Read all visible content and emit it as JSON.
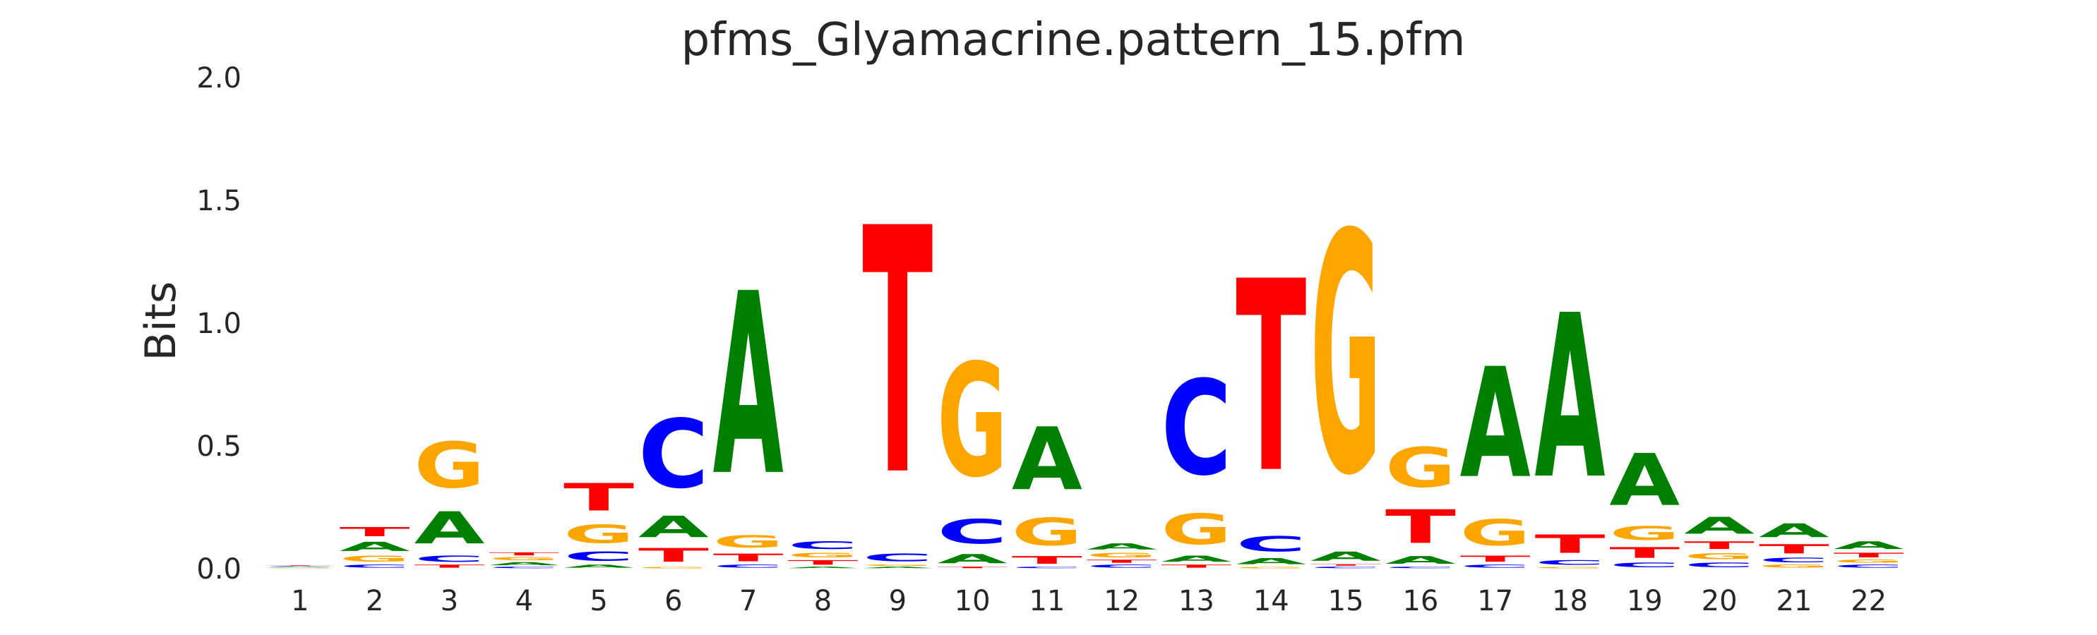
{
  "chart_data": {
    "type": "sequence-logo",
    "title": "pfms_Glyamacrine.pattern_15.pfm",
    "xlabel": "",
    "ylabel": "Bits",
    "ylim": [
      0,
      2.0
    ],
    "yticks": [
      "0.0",
      "0.5",
      "1.0",
      "1.5",
      "2.0"
    ],
    "grid": false,
    "colors": {
      "A": "#008000",
      "C": "#0000ff",
      "G": "#ffa500",
      "T": "#ff0000"
    },
    "positions": [
      {
        "pos": "1",
        "letters": [
          [
            "G",
            0.004
          ],
          [
            "A",
            0.004
          ],
          [
            "C",
            0.003
          ],
          [
            "T",
            0.003
          ]
        ]
      },
      {
        "pos": "2",
        "letters": [
          [
            "C",
            0.02
          ],
          [
            "G",
            0.04
          ],
          [
            "A",
            0.06
          ],
          [
            "T",
            0.06
          ]
        ]
      },
      {
        "pos": "3",
        "letters": [
          [
            "T",
            0.02
          ],
          [
            "C",
            0.04
          ],
          [
            "A",
            0.21
          ],
          [
            "G",
            0.3
          ]
        ]
      },
      {
        "pos": "4",
        "letters": [
          [
            "C",
            0.01
          ],
          [
            "A",
            0.02
          ],
          [
            "G",
            0.02
          ],
          [
            "T",
            0.02
          ]
        ]
      },
      {
        "pos": "5",
        "letters": [
          [
            "A",
            0.02
          ],
          [
            "C",
            0.06
          ],
          [
            "G",
            0.12
          ],
          [
            "T",
            0.18
          ]
        ]
      },
      {
        "pos": "6",
        "letters": [
          [
            "G",
            0.01
          ],
          [
            "T",
            0.09
          ],
          [
            "A",
            0.14
          ],
          [
            "C",
            0.45
          ]
        ]
      },
      {
        "pos": "7",
        "letters": [
          [
            "C",
            0.02
          ],
          [
            "T",
            0.05
          ],
          [
            "G",
            0.08
          ],
          [
            "A",
            1.19
          ]
        ]
      },
      {
        "pos": "8",
        "letters": [
          [
            "A",
            0.01
          ],
          [
            "T",
            0.03
          ],
          [
            "G",
            0.03
          ],
          [
            "C",
            0.05
          ]
        ]
      },
      {
        "pos": "9",
        "letters": [
          [
            "A",
            0.01
          ],
          [
            "G",
            0.01
          ],
          [
            "C",
            0.05
          ],
          [
            "T",
            1.61
          ]
        ]
      },
      {
        "pos": "10",
        "letters": [
          [
            "T",
            0.01
          ],
          [
            "A",
            0.06
          ],
          [
            "C",
            0.16
          ],
          [
            "G",
            0.74
          ]
        ]
      },
      {
        "pos": "11",
        "letters": [
          [
            "C",
            0.01
          ],
          [
            "T",
            0.05
          ],
          [
            "G",
            0.18
          ],
          [
            "A",
            0.41
          ]
        ]
      },
      {
        "pos": "12",
        "letters": [
          [
            "C",
            0.02
          ],
          [
            "T",
            0.02
          ],
          [
            "G",
            0.03
          ],
          [
            "A",
            0.04
          ]
        ]
      },
      {
        "pos": "13",
        "letters": [
          [
            "T",
            0.02
          ],
          [
            "A",
            0.04
          ],
          [
            "G",
            0.2
          ],
          [
            "C",
            0.62
          ]
        ]
      },
      {
        "pos": "14",
        "letters": [
          [
            "G",
            0.01
          ],
          [
            "A",
            0.04
          ],
          [
            "C",
            0.1
          ],
          [
            "T",
            1.25
          ]
        ]
      },
      {
        "pos": "15",
        "letters": [
          [
            "C",
            0.01
          ],
          [
            "T",
            0.01
          ],
          [
            "A",
            0.06
          ],
          [
            "G",
            1.57
          ]
        ]
      },
      {
        "pos": "16",
        "letters": [
          [
            "C",
            0.01
          ],
          [
            "A",
            0.05
          ],
          [
            "T",
            0.22
          ],
          [
            "G",
            0.26
          ]
        ]
      },
      {
        "pos": "17",
        "letters": [
          [
            "C",
            0.02
          ],
          [
            "T",
            0.04
          ],
          [
            "G",
            0.17
          ],
          [
            "A",
            0.72
          ]
        ]
      },
      {
        "pos": "18",
        "letters": [
          [
            "G",
            0.01
          ],
          [
            "C",
            0.03
          ],
          [
            "T",
            0.12
          ],
          [
            "A",
            1.07
          ]
        ]
      },
      {
        "pos": "19",
        "letters": [
          [
            "C",
            0.03
          ],
          [
            "T",
            0.07
          ],
          [
            "G",
            0.09
          ],
          [
            "A",
            0.34
          ]
        ]
      },
      {
        "pos": "20",
        "letters": [
          [
            "C",
            0.03
          ],
          [
            "G",
            0.04
          ],
          [
            "T",
            0.05
          ],
          [
            "A",
            0.11
          ]
        ]
      },
      {
        "pos": "21",
        "letters": [
          [
            "G",
            0.02
          ],
          [
            "C",
            0.03
          ],
          [
            "T",
            0.06
          ],
          [
            "A",
            0.09
          ]
        ]
      },
      {
        "pos": "22",
        "letters": [
          [
            "C",
            0.02
          ],
          [
            "G",
            0.02
          ],
          [
            "T",
            0.03
          ],
          [
            "A",
            0.05
          ]
        ]
      }
    ]
  }
}
